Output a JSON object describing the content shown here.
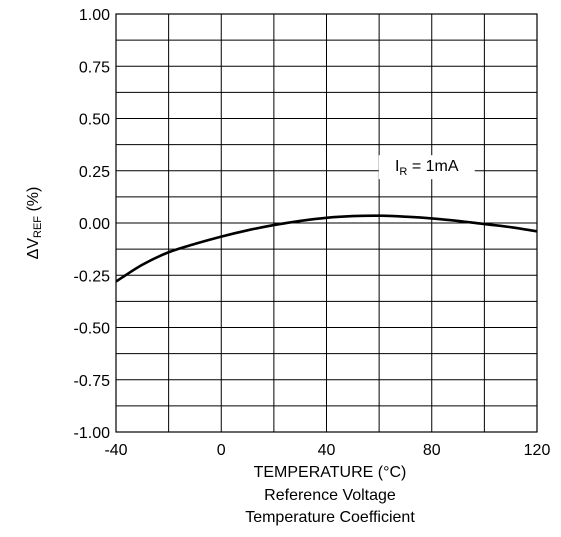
{
  "chart_data": {
    "type": "line",
    "title": "Reference Voltage",
    "subtitle": "Temperature Coefficient",
    "xlabel": "TEMPERATURE (°C)",
    "ylabel_main": "ΔV",
    "ylabel_sub": "REF",
    "ylabel_unit": " (%)",
    "xlim": [
      -40,
      120
    ],
    "ylim": [
      -1.0,
      1.0
    ],
    "x_ticks": [
      -40,
      0,
      40,
      80,
      120
    ],
    "x_tick_labels": [
      "-40",
      "0",
      "40",
      "80",
      "120"
    ],
    "y_ticks": [
      1.0,
      0.75,
      0.5,
      0.25,
      0.0,
      -0.25,
      -0.5,
      -0.75,
      -1.0
    ],
    "y_tick_labels": [
      "1.00",
      "0.75",
      "0.50",
      "0.25",
      "0.00",
      "-0.25",
      "-0.50",
      "-0.75",
      "-1.00"
    ],
    "grid": true,
    "x_grid_step": 20,
    "y_grid_step": 0.125,
    "annotation": {
      "main": "I",
      "sub": "R",
      "rest": " = 1mA",
      "x": 80,
      "y": 0.2
    },
    "series": [
      {
        "x": [
          -40,
          -30,
          -20,
          -10,
          0,
          10,
          20,
          30,
          40,
          50,
          60,
          70,
          80,
          90,
          100,
          110,
          120
        ],
        "y": [
          -0.28,
          -0.2,
          -0.14,
          -0.1,
          -0.065,
          -0.035,
          -0.01,
          0.01,
          0.025,
          0.033,
          0.035,
          0.03,
          0.022,
          0.01,
          -0.005,
          -0.02,
          -0.04
        ]
      }
    ]
  }
}
